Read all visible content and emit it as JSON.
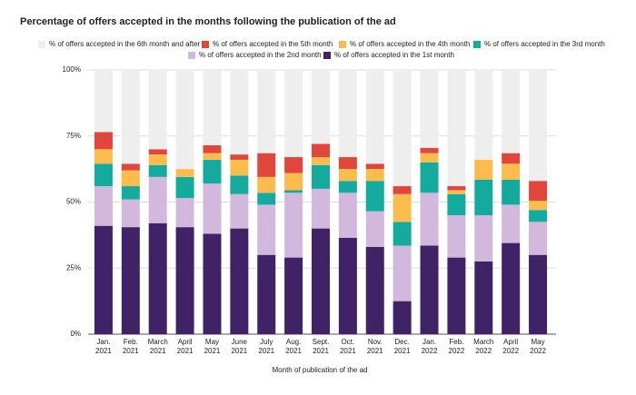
{
  "chart_data": {
    "type": "stacked_bar",
    "title": "Percentage of offers accepted in the months following the publication of the ad",
    "x_label": "Month of publication of the ad",
    "categories": [
      "Jan. 2021",
      "Feb. 2021",
      "March 2021",
      "April 2021",
      "May 2021",
      "June 2021",
      "July 2021",
      "Aug. 2021",
      "Sept. 2021",
      "Oct. 2021",
      "Nov. 2021",
      "Dec. 2021",
      "Jan. 2022",
      "Feb. 2022",
      "March 2022",
      "April 2022",
      "May 2022"
    ],
    "series": [
      {
        "name": "% of offers accepted in the 6th month and after",
        "color": "#eeeeee",
        "values": [
          23.5,
          35.5,
          30,
          37.5,
          28.5,
          32,
          31.5,
          33,
          28,
          33,
          35.5,
          44,
          29.5,
          44,
          34,
          31.5,
          42
        ]
      },
      {
        "name": "% of offers accepted in the 5th month",
        "color": "#e0463c",
        "values": [
          6.5,
          2.5,
          2,
          0,
          3,
          2,
          9,
          6,
          5,
          4.5,
          2,
          3,
          2,
          1.5,
          0,
          4,
          7.5
        ]
      },
      {
        "name": "% of offers accepted in the 4th month",
        "color": "#fbbc4e",
        "values": [
          5.5,
          6,
          4,
          3,
          2.5,
          6,
          6,
          6.5,
          3,
          4.5,
          4.5,
          10.5,
          3.5,
          1.5,
          7.5,
          6,
          3.5
        ]
      },
      {
        "name": "% of offers accepted in the 3rd month",
        "color": "#14ab9e",
        "values": [
          8.5,
          5,
          4.5,
          8,
          9,
          7,
          4.5,
          1,
          9,
          4.5,
          11.5,
          9,
          11.5,
          8,
          13.5,
          9.5,
          4.5
        ]
      },
      {
        "name": "% of offers accepted in the 2nd month",
        "color": "#d2b8dc",
        "values": [
          15,
          10.5,
          17.5,
          11,
          19,
          13,
          19,
          24.5,
          15,
          17,
          13.5,
          21,
          20,
          16,
          17.5,
          14.5,
          12.5
        ]
      },
      {
        "name": "% of offers accepted in the 1st month",
        "color": "#3f2366",
        "values": [
          41,
          40.5,
          42,
          40.5,
          38,
          40,
          30,
          29,
          40,
          36.5,
          33,
          12.5,
          33.5,
          29,
          27.5,
          34.5,
          30
        ]
      }
    ],
    "ylim": [
      0,
      100
    ],
    "yticks": [
      {
        "value": 0,
        "label": "0%"
      },
      {
        "value": 25,
        "label": "25%"
      },
      {
        "value": 50,
        "label": "50%"
      },
      {
        "value": 75,
        "label": "75%"
      },
      {
        "value": 100,
        "label": "100%"
      }
    ],
    "grid": true
  }
}
